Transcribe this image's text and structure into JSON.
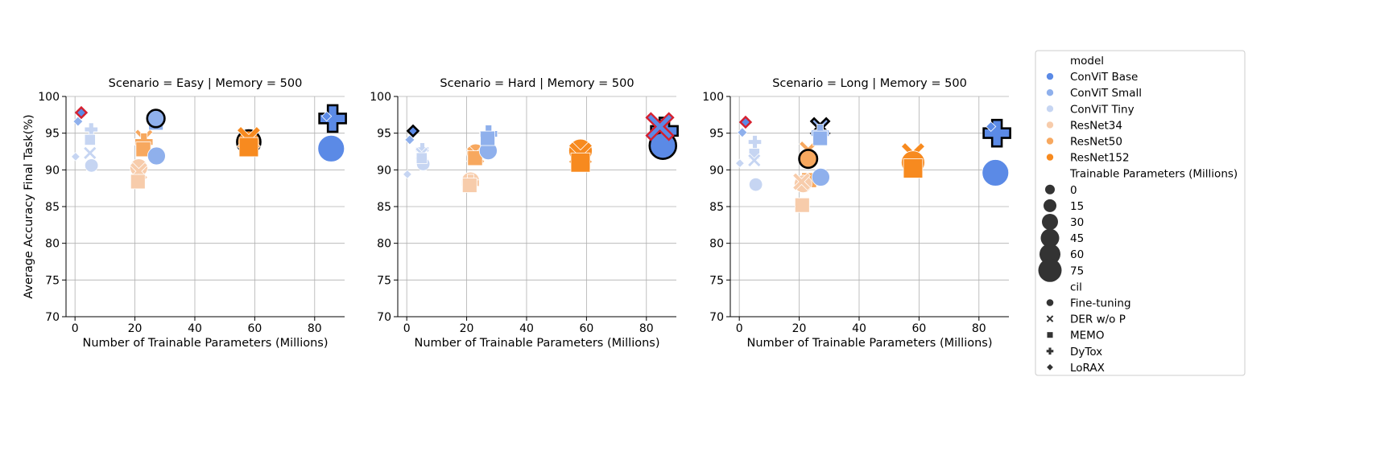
{
  "chart_data": [
    {
      "type": "scatter",
      "title": "Scenario = Easy | Memory = 500",
      "xlabel": "Number of Trainable Parameters (Millions)",
      "ylabel": "Average Accuracy Final Task(%)",
      "xlim": [
        -3,
        90
      ],
      "ylim": [
        70,
        100
      ],
      "xticks": [
        0,
        20,
        40,
        60,
        80
      ],
      "yticks": [
        70,
        75,
        80,
        85,
        90,
        95,
        100
      ],
      "grid": true,
      "points": [
        {
          "model": "ConViT Tiny",
          "cil": "LoRAX",
          "x": 0.2,
          "y": 91.8,
          "params": 0.2
        },
        {
          "model": "ConViT Small",
          "cil": "LoRAX",
          "x": 1.0,
          "y": 96.6,
          "params": 1.0
        },
        {
          "model": "ConViT Base",
          "cil": "LoRAX",
          "x": 2.1,
          "y": 97.8,
          "params": 2.1,
          "highlight": "red"
        },
        {
          "model": "ConViT Tiny",
          "cil": "DyTox",
          "x": 5.4,
          "y": 95.5,
          "params": 5.4
        },
        {
          "model": "ConViT Tiny",
          "cil": "MEMO",
          "x": 5.0,
          "y": 94.1,
          "params": 5.0
        },
        {
          "model": "ConViT Tiny",
          "cil": "DER w/o P",
          "x": 5.0,
          "y": 92.3,
          "params": 5.0
        },
        {
          "model": "ConViT Tiny",
          "cil": "Fine-tuning",
          "x": 5.5,
          "y": 90.6,
          "params": 5.5
        },
        {
          "model": "ResNet34",
          "cil": "Fine-tuning",
          "x": 21.3,
          "y": 90.3,
          "params": 21.3
        },
        {
          "model": "ResNet34",
          "cil": "DER w/o P",
          "x": 21.3,
          "y": 89.8,
          "params": 21.3
        },
        {
          "model": "ResNet34",
          "cil": "MEMO",
          "x": 21.0,
          "y": 88.4,
          "params": 21.0
        },
        {
          "model": "ResNet50",
          "cil": "DER w/o P",
          "x": 23.0,
          "y": 94.3,
          "params": 23.0
        },
        {
          "model": "ResNet50",
          "cil": "DyTox",
          "x": 23.0,
          "y": 93.8,
          "params": 23.0
        },
        {
          "model": "ResNet50",
          "cil": "MEMO",
          "x": 22.8,
          "y": 92.8,
          "params": 22.8
        },
        {
          "model": "ConViT Small",
          "cil": "Fine-tuning",
          "x": 27.0,
          "y": 97.0,
          "params": 20.0,
          "highlight": "black"
        },
        {
          "model": "ConViT Small",
          "cil": "DyTox",
          "x": 27.0,
          "y": 96.7,
          "params": 22.0
        },
        {
          "model": "ConViT Small",
          "cil": "MEMO",
          "x": 27.0,
          "y": 96.4,
          "params": 21.0
        },
        {
          "model": "ConViT Small",
          "cil": "Fine-tuning",
          "x": 27.2,
          "y": 91.9,
          "params": 22.0
        },
        {
          "model": "ResNet152",
          "cil": "Fine-tuning",
          "x": 58.0,
          "y": 93.8,
          "params": 58.0,
          "highlight": "black"
        },
        {
          "model": "ResNet152",
          "cil": "DER w/o P",
          "x": 58.0,
          "y": 94.3,
          "params": 58.0
        },
        {
          "model": "ResNet152",
          "cil": "MEMO",
          "x": 58.0,
          "y": 93.1,
          "params": 58.0
        },
        {
          "model": "ConViT Base",
          "cil": "DyTox",
          "x": 86.0,
          "y": 97.0,
          "params": 86.0,
          "highlight": "black"
        },
        {
          "model": "ConViT Base",
          "cil": "LoRAX",
          "x": 84.0,
          "y": 97.3,
          "params": 1.0
        },
        {
          "model": "ConViT Base",
          "cil": "Fine-tuning",
          "x": 85.5,
          "y": 92.9,
          "params": 85.5
        }
      ]
    },
    {
      "type": "scatter",
      "title": "Scenario = Hard | Memory = 500",
      "xlabel": "Number of Trainable Parameters (Millions)",
      "ylabel": "",
      "xlim": [
        -3,
        90
      ],
      "ylim": [
        70,
        100
      ],
      "xticks": [
        0,
        20,
        40,
        60,
        80
      ],
      "yticks": [
        70,
        75,
        80,
        85,
        90,
        95,
        100
      ],
      "grid": true,
      "points": [
        {
          "model": "ConViT Tiny",
          "cil": "LoRAX",
          "x": 0.2,
          "y": 89.4,
          "params": 0.2
        },
        {
          "model": "ConViT Small",
          "cil": "LoRAX",
          "x": 1.0,
          "y": 94.1,
          "params": 1.0
        },
        {
          "model": "ConViT Base",
          "cil": "LoRAX",
          "x": 2.1,
          "y": 95.3,
          "params": 2.1,
          "highlight": "black"
        },
        {
          "model": "ConViT Tiny",
          "cil": "DyTox",
          "x": 5.2,
          "y": 92.8,
          "params": 5.2
        },
        {
          "model": "ConViT Tiny",
          "cil": "DER w/o P",
          "x": 5.0,
          "y": 92.2,
          "params": 5.0
        },
        {
          "model": "ConViT Tiny",
          "cil": "MEMO",
          "x": 5.0,
          "y": 91.6,
          "params": 5.0
        },
        {
          "model": "ConViT Tiny",
          "cil": "Fine-tuning",
          "x": 5.5,
          "y": 90.8,
          "params": 5.5
        },
        {
          "model": "ResNet34",
          "cil": "Fine-tuning",
          "x": 21.3,
          "y": 88.5,
          "params": 21.3
        },
        {
          "model": "ResNet34",
          "cil": "DyTox",
          "x": 21.3,
          "y": 88.2,
          "params": 21.3
        },
        {
          "model": "ResNet34",
          "cil": "MEMO",
          "x": 21.0,
          "y": 87.9,
          "params": 21.0
        },
        {
          "model": "ResNet50",
          "cil": "Fine-tuning",
          "x": 23.0,
          "y": 92.3,
          "params": 23.0
        },
        {
          "model": "ResNet50",
          "cil": "DER w/o P",
          "x": 23.0,
          "y": 92.0,
          "params": 23.0
        },
        {
          "model": "ResNet50",
          "cil": "MEMO",
          "x": 22.8,
          "y": 91.6,
          "params": 22.8
        },
        {
          "model": "ConViT Small",
          "cil": "DyTox",
          "x": 27.3,
          "y": 94.9,
          "params": 22.0
        },
        {
          "model": "ConViT Small",
          "cil": "MEMO",
          "x": 27.0,
          "y": 94.3,
          "params": 21.0
        },
        {
          "model": "ConViT Small",
          "cil": "Fine-tuning",
          "x": 27.2,
          "y": 92.6,
          "params": 22.0
        },
        {
          "model": "ResNet152",
          "cil": "Fine-tuning",
          "x": 58.0,
          "y": 92.6,
          "params": 58.0
        },
        {
          "model": "ResNet152",
          "cil": "DER w/o P",
          "x": 58.0,
          "y": 92.2,
          "params": 58.0
        },
        {
          "model": "ResNet152",
          "cil": "MEMO",
          "x": 58.0,
          "y": 91.0,
          "params": 58.0
        },
        {
          "model": "ConViT Base",
          "cil": "DER w/o P",
          "x": 84.5,
          "y": 95.9,
          "params": 85.0,
          "highlight": "red"
        },
        {
          "model": "ConViT Base",
          "cil": "DyTox",
          "x": 86.0,
          "y": 95.3,
          "params": 86.0,
          "highlight": "black"
        },
        {
          "model": "ConViT Base",
          "cil": "Fine-tuning",
          "x": 85.5,
          "y": 93.3,
          "params": 85.5,
          "highlight": "black"
        }
      ]
    },
    {
      "type": "scatter",
      "title": "Scenario = Long | Memory = 500",
      "xlabel": "Number of Trainable Parameters (Millions)",
      "ylabel": "",
      "xlim": [
        -3,
        90
      ],
      "ylim": [
        70,
        100
      ],
      "xticks": [
        0,
        20,
        40,
        60,
        80
      ],
      "yticks": [
        70,
        75,
        80,
        85,
        90,
        95,
        100
      ],
      "grid": true,
      "points": [
        {
          "model": "ConViT Tiny",
          "cil": "LoRAX",
          "x": 0.2,
          "y": 90.9,
          "params": 0.2
        },
        {
          "model": "ConViT Small",
          "cil": "LoRAX",
          "x": 1.0,
          "y": 95.1,
          "params": 1.0
        },
        {
          "model": "ConViT Base",
          "cil": "LoRAX",
          "x": 2.1,
          "y": 96.5,
          "params": 2.1,
          "highlight": "red"
        },
        {
          "model": "ConViT Tiny",
          "cil": "DyTox",
          "x": 5.2,
          "y": 93.8,
          "params": 5.2
        },
        {
          "model": "ConViT Tiny",
          "cil": "MEMO",
          "x": 5.0,
          "y": 92.2,
          "params": 5.0
        },
        {
          "model": "ConViT Tiny",
          "cil": "DER w/o P",
          "x": 5.0,
          "y": 91.3,
          "params": 5.0
        },
        {
          "model": "ConViT Tiny",
          "cil": "Fine-tuning",
          "x": 5.5,
          "y": 88.0,
          "params": 5.5
        },
        {
          "model": "ResNet34",
          "cil": "Fine-tuning",
          "x": 21.3,
          "y": 88.1,
          "params": 21.3
        },
        {
          "model": "ResNet34",
          "cil": "DER w/o P",
          "x": 20.8,
          "y": 88.4,
          "params": 20.8
        },
        {
          "model": "ResNet34",
          "cil": "MEMO",
          "x": 21.0,
          "y": 85.2,
          "params": 21.0
        },
        {
          "model": "ResNet50",
          "cil": "DER w/o P",
          "x": 23.0,
          "y": 92.7,
          "params": 23.0
        },
        {
          "model": "ResNet50",
          "cil": "Fine-tuning",
          "x": 23.0,
          "y": 91.5,
          "params": 23.0,
          "highlight": "black"
        },
        {
          "model": "ResNet50",
          "cil": "MEMO",
          "x": 23.3,
          "y": 88.6,
          "params": 23.3
        },
        {
          "model": "ConViT Small",
          "cil": "DER w/o P",
          "x": 27.0,
          "y": 95.8,
          "params": 22.0,
          "highlight": "black"
        },
        {
          "model": "ConViT Small",
          "cil": "DyTox",
          "x": 27.0,
          "y": 95.0,
          "params": 22.0
        },
        {
          "model": "ConViT Small",
          "cil": "MEMO",
          "x": 27.0,
          "y": 94.3,
          "params": 21.0
        },
        {
          "model": "ConViT Small",
          "cil": "Fine-tuning",
          "x": 27.2,
          "y": 89.0,
          "params": 22.0
        },
        {
          "model": "ResNet152",
          "cil": "DER w/o P",
          "x": 58.0,
          "y": 92.1,
          "params": 58.0
        },
        {
          "model": "ResNet152",
          "cil": "Fine-tuning",
          "x": 58.0,
          "y": 91.0,
          "params": 58.0
        },
        {
          "model": "ResNet152",
          "cil": "MEMO",
          "x": 58.0,
          "y": 90.2,
          "params": 58.0
        },
        {
          "model": "ConViT Base",
          "cil": "LoRAX",
          "x": 84.0,
          "y": 95.9,
          "params": 1.0
        },
        {
          "model": "ConViT Base",
          "cil": "DyTox",
          "x": 86.0,
          "y": 95.0,
          "params": 86.0,
          "highlight": "black"
        },
        {
          "model": "ConViT Base",
          "cil": "Fine-tuning",
          "x": 85.5,
          "y": 89.6,
          "params": 85.5
        }
      ]
    }
  ],
  "legend": {
    "model_title": "model",
    "models": [
      {
        "label": "ConViT Base",
        "color": "#5b8ae6"
      },
      {
        "label": "ConViT Small",
        "color": "#8fb0ec"
      },
      {
        "label": "ConViT Tiny",
        "color": "#c6d5f2"
      },
      {
        "label": "ResNet34",
        "color": "#f7ccab"
      },
      {
        "label": "ResNet50",
        "color": "#f7a85f"
      },
      {
        "label": "ResNet152",
        "color": "#f78a1f"
      }
    ],
    "size_title": "Trainable Parameters (Millions)",
    "sizes": [
      "0",
      "15",
      "30",
      "45",
      "60",
      "75"
    ],
    "cil_title": "cil",
    "cils": [
      {
        "label": "Fine-tuning",
        "marker": "circle"
      },
      {
        "label": "DER w/o P",
        "marker": "x"
      },
      {
        "label": "MEMO",
        "marker": "square"
      },
      {
        "label": "DyTox",
        "marker": "plus"
      },
      {
        "label": "LoRAX",
        "marker": "diamond"
      }
    ]
  },
  "colors": {
    "grid": "#b0b0b0",
    "highlight_red": "#d6202f",
    "highlight_black": "#000000"
  }
}
